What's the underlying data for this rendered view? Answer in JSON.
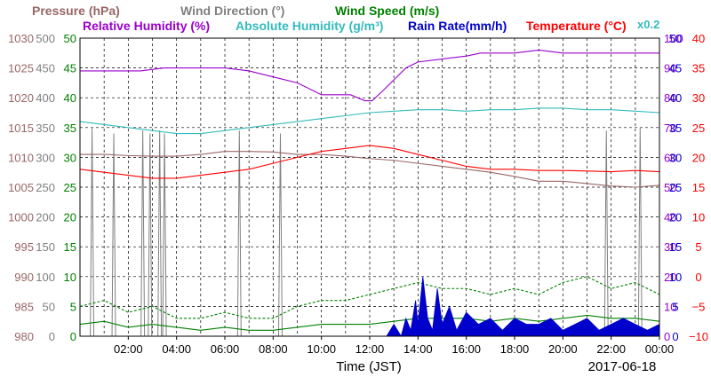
{
  "chart_data": {
    "type": "line",
    "x_axis": {
      "title": "Time (JST)",
      "date_label": "2017-06-18",
      "ticks": [
        "02:00",
        "04:00",
        "06:00",
        "08:00",
        "10:00",
        "12:00",
        "14:00",
        "16:00",
        "18:00",
        "20:00",
        "22:00",
        "00:00"
      ],
      "range_hours": [
        0,
        24
      ]
    },
    "legend": {
      "pressure": "Pressure (hPa)",
      "wind_direction": "Wind Direction (°)",
      "wind_speed": "Wind Speed (m/s)",
      "relative_humidity": "Relative Humidity (%)",
      "absolute_humidity": "Absolute Humidity (g/m³)",
      "absolute_humidity_scale": "x0.2",
      "rain_rate": "Rain Rate(mm/h)",
      "temperature": "Temperature (°C)"
    },
    "axes": {
      "pressure": {
        "color": "#996666",
        "range": [
          980,
          1030
        ],
        "ticks": [
          "1030",
          "1025",
          "1020",
          "1015",
          "1010",
          "1005",
          "1000",
          "995",
          "990",
          "985",
          "980"
        ]
      },
      "wind_direction": {
        "color": "#808080",
        "range": [
          0,
          500
        ],
        "ticks": [
          "500",
          "450",
          "400",
          "350",
          "300",
          "250",
          "200",
          "150",
          "100",
          "50",
          "0"
        ]
      },
      "wind_speed": {
        "color": "#008000",
        "range": [
          0,
          50
        ],
        "ticks": [
          "50",
          "45",
          "40",
          "35",
          "30",
          "25",
          "20",
          "15",
          "10",
          "5",
          "0"
        ]
      },
      "relative_humidity": {
        "color": "#9900cc",
        "range": [
          0,
          100
        ],
        "ticks": [
          "100",
          "90",
          "80",
          "70",
          "60",
          "50",
          "40",
          "30",
          "20",
          "10",
          "0"
        ]
      },
      "rain_rate": {
        "color": "#0000cc",
        "range": [
          0,
          50
        ],
        "ticks": [
          "50",
          "45",
          "40",
          "35",
          "30",
          "25",
          "20",
          "15",
          "10",
          "5",
          "0"
        ]
      },
      "temperature": {
        "color": "#ff0000",
        "range": [
          -10,
          40
        ],
        "ticks": [
          "40",
          "35",
          "30",
          "25",
          "20",
          "15",
          "10",
          "5",
          "0",
          "−5",
          "−10"
        ]
      }
    },
    "series": [
      {
        "name": "Pressure (hPa)",
        "color": "#996666",
        "axis": "pressure",
        "x": [
          0,
          1,
          2,
          3,
          4,
          5,
          6,
          7,
          8,
          9,
          10,
          11,
          12,
          13,
          14,
          15,
          16,
          17,
          18,
          19,
          20,
          21,
          22,
          23,
          24
        ],
        "y": [
          1010.5,
          1010.5,
          1010.3,
          1010.2,
          1010.2,
          1010.5,
          1011.0,
          1011.0,
          1010.9,
          1010.5,
          1010.5,
          1010.2,
          1009.8,
          1009.5,
          1009.0,
          1008.5,
          1008.0,
          1007.5,
          1006.8,
          1006.0,
          1006.0,
          1005.6,
          1005.2,
          1005.0,
          1005.3
        ]
      },
      {
        "name": "Relative Humidity (%)",
        "color": "#9900cc",
        "axis": "relative_humidity",
        "x": [
          0,
          1.5,
          2.5,
          3.5,
          5,
          6,
          7,
          8,
          9,
          10,
          10.6,
          11.2,
          11.8,
          12.1,
          12.5,
          13,
          13.5,
          14,
          15,
          16,
          16.6,
          17,
          18,
          19,
          20,
          22,
          24
        ],
        "y": [
          89,
          89,
          89,
          90,
          90,
          90,
          89,
          87,
          85,
          81,
          81,
          81,
          79,
          79,
          82,
          86,
          90,
          92,
          93,
          94,
          95,
          95,
          95,
          96,
          95,
          95,
          95
        ]
      },
      {
        "name": "Absolute Humidity (g/m³)",
        "color": "#33bbbb",
        "axis": "relative_humidity",
        "x": [
          0,
          1,
          2,
          3,
          4,
          5,
          6,
          7,
          8,
          9,
          10,
          11,
          12,
          13,
          14,
          15,
          16,
          17,
          18,
          19,
          20,
          21,
          22,
          23,
          24
        ],
        "y": [
          72,
          71,
          70,
          69,
          68,
          68,
          69,
          70,
          71,
          72,
          73,
          74,
          75,
          75.5,
          76,
          76,
          75.5,
          76,
          76,
          76.5,
          76.5,
          76,
          76,
          75.5,
          75
        ]
      },
      {
        "name": "Temperature (°C)",
        "color": "#ff0000",
        "axis": "temperature",
        "x": [
          0,
          1,
          2,
          3,
          4,
          5,
          6,
          7,
          8,
          9,
          10,
          11,
          12,
          13,
          14,
          15,
          16,
          17,
          18,
          19,
          20,
          21,
          22,
          23,
          24
        ],
        "y": [
          18,
          17.5,
          17,
          16.5,
          16.5,
          17,
          17.5,
          18,
          19,
          20,
          21,
          21.5,
          22,
          21.5,
          20.5,
          19.5,
          18.5,
          18,
          18,
          17.8,
          17.8,
          17.7,
          17.6,
          17.8,
          17.6
        ]
      },
      {
        "name": "Wind Speed (m/s) mean",
        "color": "#008000",
        "axis": "wind_speed",
        "x": [
          0,
          1,
          2,
          3,
          4,
          5,
          6,
          7,
          8,
          9,
          10,
          11,
          12,
          13,
          14,
          15,
          16,
          17,
          18,
          19,
          20,
          21,
          22,
          23,
          24
        ],
        "y": [
          2,
          2.5,
          1.5,
          2,
          1.5,
          1,
          1.5,
          1,
          1,
          1.5,
          2,
          2,
          2,
          2.5,
          3,
          3,
          3,
          2.5,
          3,
          2.5,
          3,
          3.5,
          3,
          3,
          2.5
        ]
      },
      {
        "name": "Wind Speed (m/s) gust",
        "color": "#008000",
        "axis": "wind_speed",
        "dashed": true,
        "x": [
          0,
          1,
          2,
          3,
          4,
          5,
          6,
          7,
          8,
          9,
          10,
          11,
          12,
          13,
          14,
          15,
          16,
          17,
          18,
          19,
          20,
          21,
          22,
          23,
          24
        ],
        "y": [
          5,
          6,
          4,
          5,
          3,
          3,
          4,
          3,
          3,
          5,
          6,
          6,
          7,
          8,
          9,
          8,
          8,
          7,
          8,
          7,
          9,
          10,
          8,
          9,
          7
        ]
      },
      {
        "name": "Rain Rate(mm/h)",
        "color": "#0000cc",
        "axis": "rain_rate",
        "fill": true,
        "x": [
          12.7,
          13.0,
          13.3,
          13.5,
          13.7,
          13.9,
          14.0,
          14.2,
          14.4,
          14.6,
          14.8,
          15.0,
          15.3,
          15.6,
          16.0,
          16.5,
          17.0,
          17.5,
          18.0,
          18.5,
          19.0,
          19.5,
          20.0,
          20.5,
          21.0,
          21.5,
          22.0,
          22.5,
          23.0,
          23.5,
          24.0
        ],
        "y": [
          0,
          2,
          0,
          3,
          1,
          6,
          2,
          10,
          3,
          1,
          8,
          2,
          5,
          1,
          4,
          2,
          3,
          1,
          3,
          2,
          2,
          3,
          1,
          2,
          3,
          1,
          2,
          3,
          2,
          1,
          2
        ]
      }
    ],
    "wind_direction_spikes": {
      "color": "#808080",
      "axis": "wind_direction",
      "x": [
        0.5,
        1.4,
        2.6,
        2.9,
        3.3,
        3.5,
        6.6,
        8.3,
        21.8,
        23.2
      ],
      "y": [
        350,
        340,
        345,
        340,
        345,
        340,
        345,
        340,
        345,
        350
      ]
    }
  }
}
